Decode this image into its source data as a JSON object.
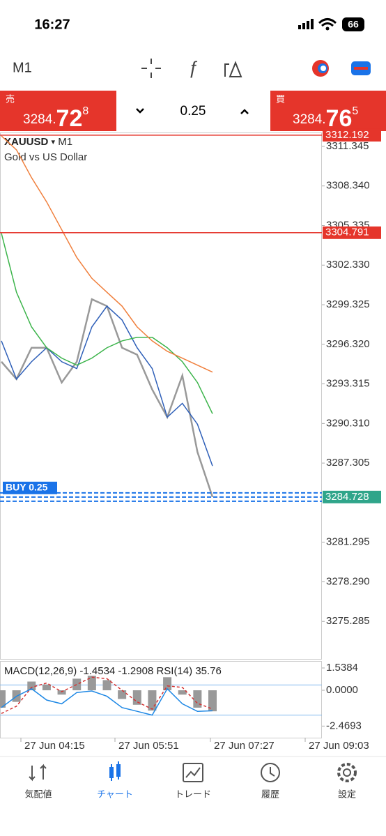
{
  "status_bar": {
    "time": "16:27",
    "battery": "66"
  },
  "toolbar": {
    "timeframe": "M1"
  },
  "trade_panel": {
    "sell_label": "売",
    "sell_price": [
      "3284.",
      "72",
      "8"
    ],
    "lot": "0.25",
    "buy_label": "買",
    "buy_price": [
      "3284.",
      "76",
      "5"
    ]
  },
  "chart_data": [
    {
      "type": "line",
      "symbol": "XAUUSD",
      "symbol_arrow": "▾",
      "timeframe": "M1",
      "description": "Gold vs US Dollar",
      "ylim": [
        3272.44,
        3312.4
      ],
      "yticks": [
        {
          "value": 3311.345,
          "label": "3311.345"
        },
        {
          "value": 3308.34,
          "label": "3308.340"
        },
        {
          "value": 3305.335,
          "label": "3305.335"
        },
        {
          "value": 3302.33,
          "label": "3302.330"
        },
        {
          "value": 3299.325,
          "label": "3299.325"
        },
        {
          "value": 3296.32,
          "label": "3296.320"
        },
        {
          "value": 3293.315,
          "label": "3293.315"
        },
        {
          "value": 3290.31,
          "label": "3290.310"
        },
        {
          "value": 3287.305,
          "label": "3287.305"
        },
        {
          "value": 3281.295,
          "label": "3281.295"
        },
        {
          "value": 3278.29,
          "label": "3278.290"
        },
        {
          "value": 3275.285,
          "label": "3275.285"
        }
      ],
      "series": [
        {
          "color": "#999999",
          "values": [
            3295.0,
            3293.68,
            3296.06,
            3296.06,
            3293.42,
            3295.0,
            3299.74,
            3299.22,
            3296.06,
            3295.53,
            3292.89,
            3290.79,
            3293.95,
            3288.15,
            3284.73
          ]
        },
        {
          "color": "#2e5fb8",
          "values": [
            3296.58,
            3293.68,
            3295.0,
            3296.06,
            3295.0,
            3294.48,
            3297.64,
            3299.22,
            3298.17,
            3296.06,
            3294.48,
            3290.79,
            3291.84,
            3290.26,
            3287.09
          ]
        },
        {
          "color": "#3cb44b",
          "values": [
            3304.75,
            3300.27,
            3297.64,
            3296.06,
            3295.27,
            3294.74,
            3295.27,
            3296.06,
            3296.58,
            3296.85,
            3296.85,
            3296.06,
            3295.0,
            3293.42,
            3291.05
          ]
        },
        {
          "color": "#f07f3c",
          "values": [
            3312.14,
            3311.08,
            3308.97,
            3307.13,
            3305.02,
            3302.91,
            3301.33,
            3300.27,
            3299.22,
            3297.64,
            3296.58,
            3295.79,
            3295.27,
            3294.74,
            3294.21
          ]
        }
      ],
      "levels": [
        {
          "value": 3312.192,
          "color": "#e5352b"
        },
        {
          "value": 3304.791,
          "color": "#e5352b"
        },
        {
          "value": 3284.728,
          "color": "#2fa58a"
        }
      ],
      "order_label": "BUY 0.25"
    },
    {
      "type": "bar",
      "title": "MACD(12,26,9)",
      "macd_value": "-1.4534",
      "signal_value": "-1.2908",
      "rsi_title": "RSI(14)",
      "rsi_value": "35.76",
      "ylim": [
        -3.27,
        1.923
      ],
      "yticks": [
        1.5384,
        {
          "value": 0,
          "label": "0.0000"
        },
        -2.4693
      ],
      "y2lim": [
        0,
        100
      ],
      "y2_levels": [
        70,
        30
      ],
      "series": [
        {
          "color": "#999999",
          "values": [
            -1.2,
            -0.8,
            0.6,
            0.4,
            -0.3,
            0.8,
            1.0,
            0.7,
            -0.6,
            -1.0,
            -1.4,
            0.9,
            -0.3,
            -1.2,
            -1.45
          ]
        },
        {
          "color": "#d33333",
          "dash": true,
          "values": [
            -1.6,
            -1.1,
            0.2,
            0.5,
            -0.1,
            0.4,
            0.9,
            0.8,
            0.0,
            -0.8,
            -1.3,
            0.3,
            0.2,
            -0.9,
            -1.29
          ]
        },
        {
          "color": "#1e88e5",
          "axis": "y2",
          "values": [
            40,
            55,
            65,
            50,
            45,
            60,
            62,
            55,
            40,
            35,
            30,
            65,
            45,
            35,
            35.76
          ]
        }
      ]
    }
  ],
  "time_axis": {
    "labels": [
      "27 Jun 04:15",
      "27 Jun 05:51",
      "27 Jun 07:27",
      "27 Jun 09:03"
    ]
  },
  "bottom_nav": {
    "items": [
      "気配値",
      "チャート",
      "トレード",
      "履歴",
      "設定"
    ],
    "active": 1
  }
}
